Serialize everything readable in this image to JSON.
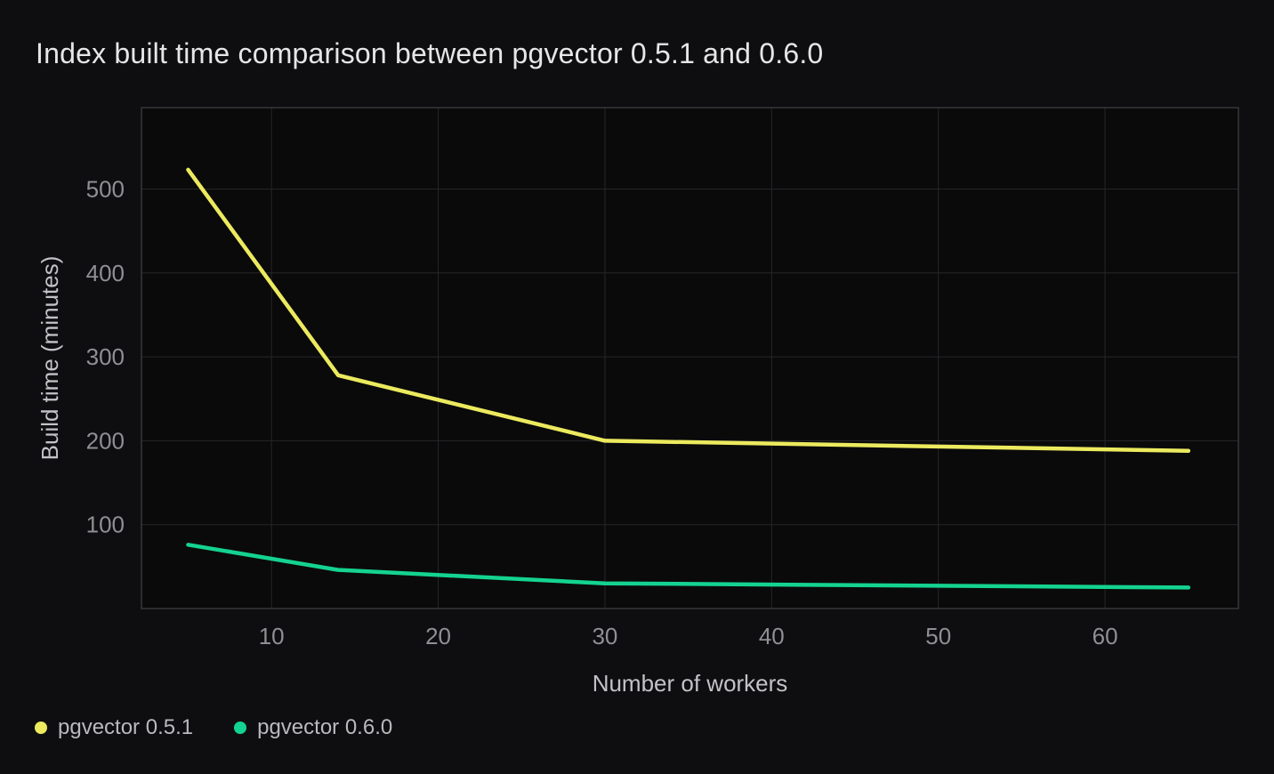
{
  "chart_data": {
    "type": "line",
    "title": "Index built time comparison between pgvector 0.5.1 and 0.6.0",
    "xlabel": "Number of workers",
    "ylabel": "Build time (minutes)",
    "x": [
      5,
      14,
      30,
      65
    ],
    "series": [
      {
        "name": "pgvector 0.5.1",
        "color": "#ecea5e",
        "values": [
          523,
          278,
          200,
          188
        ]
      },
      {
        "name": "pgvector 0.6.0",
        "color": "#14d390",
        "values": [
          76,
          46,
          30,
          25
        ]
      }
    ],
    "x_ticks": [
      10,
      20,
      30,
      40,
      50,
      60
    ],
    "y_ticks": [
      100,
      200,
      300,
      400,
      500
    ],
    "x_range": [
      2.2,
      68
    ],
    "y_range": [
      0,
      597
    ],
    "grid": true,
    "legend_position": "bottom-left"
  },
  "colors": {
    "background": "#0e0e10",
    "plot_background": "#0a0a0b",
    "grid": "#26262a",
    "plot_border": "#36363b",
    "title_text": "#e6e6e9",
    "tick_text": "#8f8f94",
    "axis_label_text": "#c2c2c7",
    "legend_text": "#b9b9be"
  }
}
